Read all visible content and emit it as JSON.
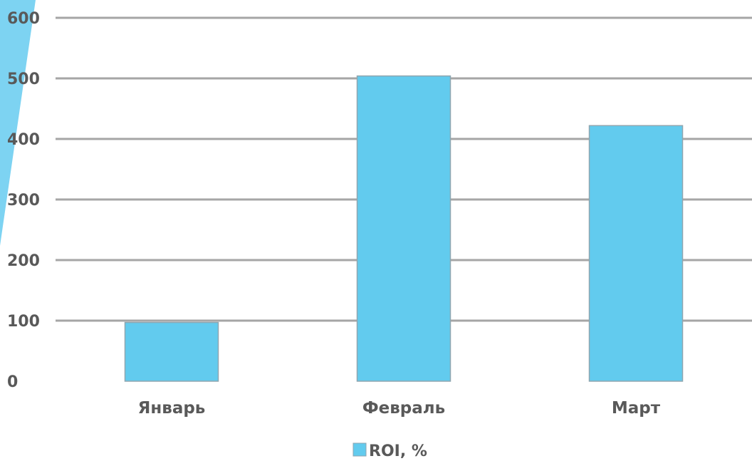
{
  "chart_data": {
    "type": "bar",
    "categories": [
      "Январь",
      "Февраль",
      "Март"
    ],
    "series": [
      {
        "name": "ROI, %",
        "values": [
          97,
          504,
          422
        ]
      }
    ],
    "ylim": [
      0,
      600
    ],
    "yticks": [
      0,
      100,
      200,
      300,
      400,
      500,
      600
    ],
    "grid": true,
    "legend_position": "bottom",
    "title": "",
    "xlabel": "",
    "ylabel": ""
  },
  "colors": {
    "bar": "#62CBEE",
    "bar_edge": "#8FA6B0",
    "gridline": "#A6A6A6",
    "decor_stripe": "#7DD3F2",
    "text": "#595959"
  }
}
